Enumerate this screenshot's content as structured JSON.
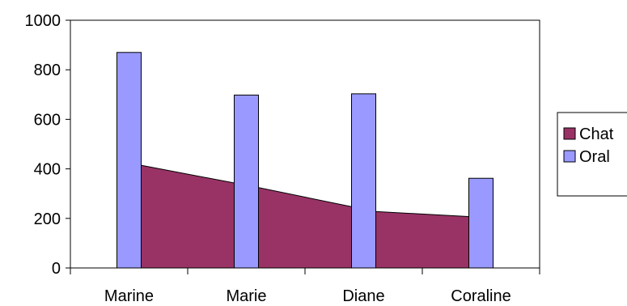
{
  "chart_data": {
    "type": "bar",
    "categories": [
      "Marine",
      "Marie",
      "Diane",
      "Coraline"
    ],
    "ylim": [
      0,
      1000
    ],
    "yticks": [
      0,
      200,
      400,
      600,
      800,
      1000
    ],
    "grid": false,
    "legend_position": "right",
    "series": [
      {
        "name": "Chat",
        "type": "area",
        "color": "#993366",
        "values": [
          415,
          325,
          228,
          207
        ]
      },
      {
        "name": "Oral",
        "type": "bar",
        "color": "#9999ff",
        "values": [
          870,
          698,
          703,
          362
        ]
      }
    ]
  }
}
